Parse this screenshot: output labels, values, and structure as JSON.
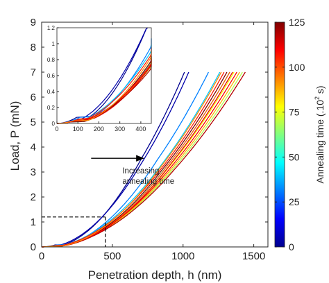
{
  "chart_data": {
    "type": "line",
    "xlabel": "Penetration depth, h (nm)",
    "ylabel": "Load, P (mN)",
    "xlim": [
      0,
      1600
    ],
    "ylim": [
      0,
      9
    ],
    "xticks": [
      "0",
      "500",
      "1000",
      "1500"
    ],
    "yticks": [
      "0",
      "1",
      "2",
      "3",
      "4",
      "5",
      "6",
      "7",
      "8",
      "9"
    ],
    "grid": false,
    "annotation": {
      "line1": "Increasing",
      "line2": "annealing time",
      "arrow_from": [
        350,
        3.55
      ],
      "arrow_to": [
        720,
        3.55
      ]
    },
    "dashed_box": {
      "x": 450,
      "y": 1.2
    },
    "colorbar": {
      "label": "Annealing time (.10",
      "label_sup": "2",
      "label_tail": " s)",
      "min": 0,
      "max": 125,
      "ticks": [
        "0",
        "25",
        "50",
        "75",
        "100",
        "125"
      ]
    },
    "series_style": {
      "pmax": 7.0
    },
    "series": [
      {
        "k": 0.0,
        "hmax": 1010
      },
      {
        "k": 0.03,
        "hmax": 1040
      },
      {
        "k": 0.25,
        "hmax": 1180
      },
      {
        "k": 0.32,
        "hmax": 1260
      },
      {
        "k": 0.4,
        "hmax": 1330
      },
      {
        "k": 0.55,
        "hmax": 1420
      },
      {
        "k": 0.62,
        "hmax": 1360
      },
      {
        "k": 0.7,
        "hmax": 1400
      },
      {
        "k": 0.78,
        "hmax": 1330
      },
      {
        "k": 0.85,
        "hmax": 1290
      },
      {
        "k": 0.9,
        "hmax": 1350
      },
      {
        "k": 0.95,
        "hmax": 1440
      },
      {
        "k": 1.0,
        "hmax": 1310
      },
      {
        "k": 0.88,
        "hmax": 1380
      },
      {
        "k": 0.74,
        "hmax": 1270
      }
    ],
    "inset": {
      "xlim": [
        0,
        450
      ],
      "ylim": [
        0,
        1.2
      ],
      "xticks": [
        "0",
        "100",
        "200",
        "300",
        "400"
      ],
      "yticks": [
        "0",
        "0.2",
        "0.4",
        "0.6",
        "0.8",
        "1",
        "1.2"
      ]
    }
  },
  "colors": {
    "arrow": "#000000",
    "dashed": "#000000",
    "axes": "#222222"
  }
}
